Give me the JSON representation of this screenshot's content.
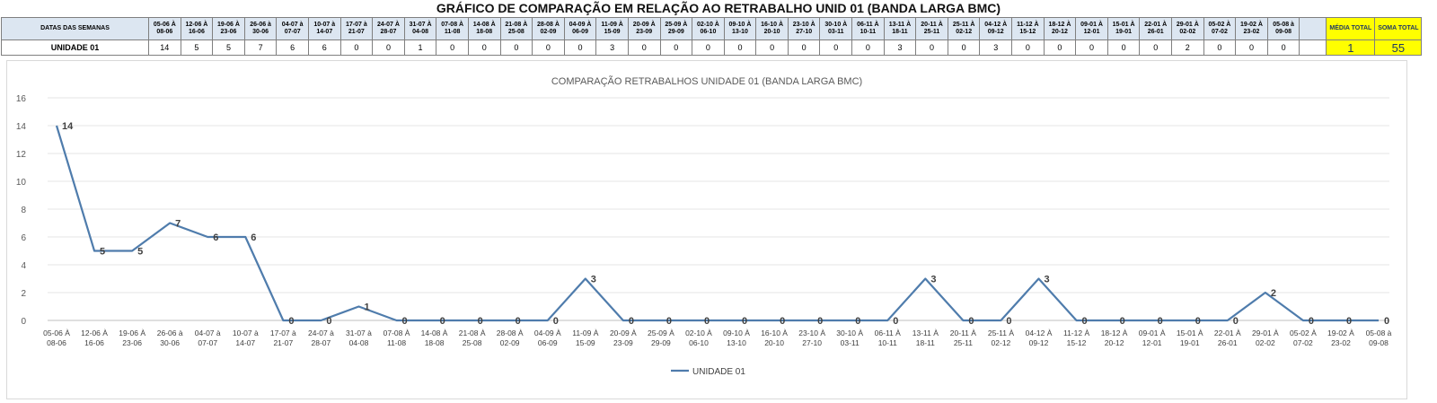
{
  "main_title": "GRÁFICO DE COMPARAÇÃO EM RELAÇÃO AO RETRABALHO UNID 01 (BANDA LARGA BMC)",
  "table": {
    "header_label": "DATAS DAS SEMANAS",
    "row_label": "UNIDADE 01",
    "weeks": [
      "05-06 À 08-06",
      "12-06 À 16-06",
      "19-06 À 23-06",
      "26-06 à 30-06",
      "04-07 à 07-07",
      "10-07 à 14-07",
      "17-07 à 21-07",
      "24-07 À 28-07",
      "31-07 À 04-08",
      "07-08 À 11-08",
      "14-08 À 18-08",
      "21-08 À 25-08",
      "28-08 À 02-09",
      "04-09 À 06-09",
      "11-09 À 15-09",
      "20-09 À 23-09",
      "25-09 À 29-09",
      "02-10 À 06-10",
      "09-10 À 13-10",
      "16-10 À 20-10",
      "23-10 À 27-10",
      "30-10 À 03-11",
      "06-11 À 10-11",
      "13-11 À 18-11",
      "20-11 À 25-11",
      "25-11 À 02-12",
      "04-12 À 09-12",
      "11-12 À 15-12",
      "18-12 À 20-12",
      "09-01 À 12-01",
      "15-01 À 19-01",
      "22-01 À 26-01",
      "29-01 À 02-02",
      "05-02 À 07-02",
      "19-02 À 23-02",
      "05-08 à 09-08"
    ],
    "values": [
      "14",
      "5",
      "5",
      "7",
      "6",
      "6",
      "0",
      "0",
      "1",
      "0",
      "0",
      "0",
      "0",
      "0",
      "3",
      "0",
      "0",
      "0",
      "0",
      "0",
      "0",
      "0",
      "0",
      "3",
      "0",
      "0",
      "3",
      "0",
      "0",
      "0",
      "0",
      "0",
      "2",
      "0",
      "0",
      "0"
    ],
    "media_label": "MÉDIA TOTAL",
    "media_value": "1",
    "soma_label": "SOMA TOTAL",
    "soma_value": "55",
    "highlight_color": "#ffff00",
    "header_color": "#dce6f1"
  },
  "chart_data": {
    "type": "line",
    "title": "COMPARAÇÃO RETRABALHOS UNIDADE 01 (BANDA LARGA BMC)",
    "categories": [
      [
        "05-06 À",
        "08-06"
      ],
      [
        "12-06 À",
        "16-06"
      ],
      [
        "19-06 À",
        "23-06"
      ],
      [
        "26-06 à",
        "30-06"
      ],
      [
        "04-07 à",
        "07-07"
      ],
      [
        "10-07 à",
        "14-07"
      ],
      [
        "17-07 à",
        "21-07"
      ],
      [
        "24-07 à",
        "28-07"
      ],
      [
        "31-07 à",
        "04-08"
      ],
      [
        "07-08 À",
        "11-08"
      ],
      [
        "14-08 À",
        "18-08"
      ],
      [
        "21-08 À",
        "25-08"
      ],
      [
        "28-08 À",
        "02-09"
      ],
      [
        "04-09 À",
        "06-09"
      ],
      [
        "11-09 À",
        "15-09"
      ],
      [
        "20-09 À",
        "23-09"
      ],
      [
        "25-09 À",
        "29-09"
      ],
      [
        "02-10 À",
        "06-10"
      ],
      [
        "09-10 À",
        "13-10"
      ],
      [
        "16-10 À",
        "20-10"
      ],
      [
        "23-10 À",
        "27-10"
      ],
      [
        "30-10 À",
        "03-11"
      ],
      [
        "06-11 À",
        "10-11"
      ],
      [
        "13-11 À",
        "18-11"
      ],
      [
        "20-11 À",
        "25-11"
      ],
      [
        "25-11 À",
        "02-12"
      ],
      [
        "04-12 À",
        "09-12"
      ],
      [
        "11-12 À",
        "15-12"
      ],
      [
        "18-12 À",
        "20-12"
      ],
      [
        "09-01 À",
        "12-01"
      ],
      [
        "15-01 À",
        "19-01"
      ],
      [
        "22-01 À",
        "26-01"
      ],
      [
        "29-01 À",
        "02-02"
      ],
      [
        "05-02 À",
        "07-02"
      ],
      [
        "19-02 À",
        "23-02"
      ],
      [
        "05-08 à",
        "09-08"
      ]
    ],
    "series": [
      {
        "name": "UNIDADE 01",
        "color": "#4f7cac",
        "values": [
          14,
          5,
          5,
          7,
          6,
          6,
          0,
          0,
          1,
          0,
          0,
          0,
          0,
          0,
          3,
          0,
          0,
          0,
          0,
          0,
          0,
          0,
          0,
          3,
          0,
          0,
          3,
          0,
          0,
          0,
          0,
          0,
          2,
          0,
          0,
          0
        ]
      }
    ],
    "ylim": [
      0,
      16
    ],
    "yticks": [
      "0",
      "2",
      "4",
      "6",
      "8",
      "10",
      "12",
      "14",
      "16"
    ],
    "grid": true,
    "legend": "bottom"
  }
}
